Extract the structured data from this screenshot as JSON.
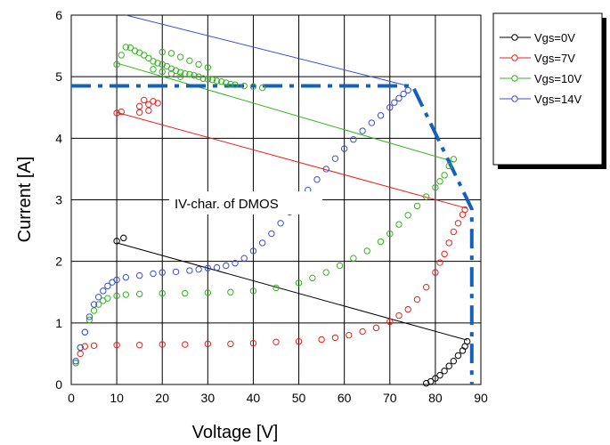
{
  "chart_data": {
    "type": "scatter",
    "title": "",
    "xlabel": "Voltage [V]",
    "ylabel": "Current [A]",
    "xlim": [
      0,
      90
    ],
    "ylim": [
      0,
      6
    ],
    "x_ticks": [
      0,
      10,
      20,
      30,
      40,
      50,
      60,
      70,
      80,
      90
    ],
    "y_ticks": [
      0,
      1,
      2,
      3,
      4,
      5,
      6
    ],
    "grid": true,
    "legend_position": "right-outside",
    "annotation": {
      "text": "IV-char. of DMOS",
      "x": 38,
      "y": 2.85
    },
    "series": [
      {
        "name": "Vgs=0V",
        "color": "#000000",
        "points": [
          [
            78,
            0.02
          ],
          [
            79,
            0.05
          ],
          [
            80,
            0.1
          ],
          [
            81,
            0.15
          ],
          [
            82,
            0.22
          ],
          [
            83,
            0.3
          ],
          [
            84,
            0.38
          ],
          [
            85,
            0.47
          ],
          [
            86,
            0.55
          ],
          [
            86.5,
            0.62
          ],
          [
            87,
            0.7
          ],
          [
            10,
            2.33
          ],
          [
            11.5,
            2.38
          ]
        ],
        "line": [
          [
            10,
            2.3
          ],
          [
            87,
            0.72
          ]
        ]
      },
      {
        "name": "Vgs=7V",
        "color": "#e8211c",
        "points": [
          [
            1,
            0.35
          ],
          [
            2,
            0.5
          ],
          [
            3,
            0.62
          ],
          [
            5,
            0.63
          ],
          [
            10,
            0.64
          ],
          [
            15,
            0.64
          ],
          [
            20,
            0.65
          ],
          [
            25,
            0.65
          ],
          [
            30,
            0.66
          ],
          [
            35,
            0.66
          ],
          [
            40,
            0.67
          ],
          [
            45,
            0.69
          ],
          [
            50,
            0.7
          ],
          [
            55,
            0.73
          ],
          [
            58,
            0.76
          ],
          [
            61,
            0.8
          ],
          [
            64,
            0.86
          ],
          [
            67,
            0.92
          ],
          [
            70,
            1.02
          ],
          [
            72,
            1.12
          ],
          [
            74,
            1.22
          ],
          [
            76,
            1.38
          ],
          [
            78,
            1.58
          ],
          [
            80,
            1.82
          ],
          [
            81,
            1.98
          ],
          [
            82,
            2.12
          ],
          [
            83,
            2.3
          ],
          [
            84,
            2.48
          ],
          [
            85,
            2.62
          ],
          [
            86,
            2.76
          ],
          [
            86.5,
            2.84
          ],
          [
            10,
            4.41
          ],
          [
            11,
            4.43
          ],
          [
            15,
            4.52
          ],
          [
            16,
            4.62
          ],
          [
            17,
            4.55
          ],
          [
            18,
            4.6
          ],
          [
            19,
            4.57
          ],
          [
            15,
            4.42
          ],
          [
            17,
            4.45
          ]
        ],
        "line": [
          [
            10,
            4.42
          ],
          [
            87,
            2.86
          ]
        ]
      },
      {
        "name": "Vgs=10V",
        "color": "#34b41c",
        "points": [
          [
            1,
            0.35
          ],
          [
            2,
            0.6
          ],
          [
            3,
            0.85
          ],
          [
            4,
            1.05
          ],
          [
            5,
            1.2
          ],
          [
            6,
            1.3
          ],
          [
            7,
            1.36
          ],
          [
            8,
            1.4
          ],
          [
            10,
            1.44
          ],
          [
            12,
            1.46
          ],
          [
            15,
            1.47
          ],
          [
            20,
            1.48
          ],
          [
            25,
            1.48
          ],
          [
            30,
            1.49
          ],
          [
            35,
            1.5
          ],
          [
            40,
            1.52
          ],
          [
            45,
            1.57
          ],
          [
            50,
            1.65
          ],
          [
            53,
            1.73
          ],
          [
            56,
            1.82
          ],
          [
            59,
            1.93
          ],
          [
            62,
            2.05
          ],
          [
            65,
            2.17
          ],
          [
            68,
            2.32
          ],
          [
            70,
            2.45
          ],
          [
            72,
            2.6
          ],
          [
            74,
            2.75
          ],
          [
            76,
            2.9
          ],
          [
            78,
            3.05
          ],
          [
            80,
            3.2
          ],
          [
            81,
            3.3
          ],
          [
            82,
            3.4
          ],
          [
            83,
            3.55
          ],
          [
            84,
            3.66
          ],
          [
            10,
            5.2
          ],
          [
            11,
            5.35
          ],
          [
            12,
            5.48
          ],
          [
            13,
            5.47
          ],
          [
            14,
            5.42
          ],
          [
            15,
            5.39
          ],
          [
            16,
            5.35
          ],
          [
            17,
            5.3
          ],
          [
            18,
            5.25
          ],
          [
            19,
            5.22
          ],
          [
            20,
            5.2
          ],
          [
            21,
            5.17
          ],
          [
            22,
            5.13
          ],
          [
            23,
            5.1
          ],
          [
            24,
            5.07
          ],
          [
            25,
            5.05
          ],
          [
            26,
            5.04
          ],
          [
            27,
            5.02
          ],
          [
            28,
            5.0
          ],
          [
            29,
            4.97
          ],
          [
            30,
            4.96
          ],
          [
            31,
            4.95
          ],
          [
            32,
            4.93
          ],
          [
            33,
            4.92
          ],
          [
            34,
            4.9
          ],
          [
            35,
            4.88
          ],
          [
            36,
            4.87
          ],
          [
            38,
            4.85
          ],
          [
            40,
            4.84
          ],
          [
            42,
            4.82
          ],
          [
            20,
            5.4
          ],
          [
            22,
            5.38
          ],
          [
            24,
            5.32
          ],
          [
            26,
            5.26
          ],
          [
            28,
            5.2
          ],
          [
            30,
            5.15
          ],
          [
            18,
            5.12
          ],
          [
            20,
            5.08
          ],
          [
            22,
            5.05
          ],
          [
            24,
            5.0
          ]
        ],
        "line": [
          [
            10,
            5.22
          ],
          [
            84,
            3.62
          ]
        ]
      },
      {
        "name": "Vgs=14V",
        "color": "#3a50c8",
        "points": [
          [
            1,
            0.38
          ],
          [
            2,
            0.6
          ],
          [
            3,
            0.85
          ],
          [
            4,
            1.1
          ],
          [
            5,
            1.3
          ],
          [
            6,
            1.42
          ],
          [
            7,
            1.52
          ],
          [
            8,
            1.6
          ],
          [
            9,
            1.66
          ],
          [
            10,
            1.7
          ],
          [
            12,
            1.74
          ],
          [
            15,
            1.77
          ],
          [
            18,
            1.8
          ],
          [
            20,
            1.82
          ],
          [
            23,
            1.83
          ],
          [
            26,
            1.85
          ],
          [
            28,
            1.87
          ],
          [
            30,
            1.89
          ],
          [
            32,
            1.9
          ],
          [
            34,
            1.93
          ],
          [
            36,
            1.97
          ],
          [
            38,
            2.05
          ],
          [
            40,
            2.17
          ],
          [
            42,
            2.3
          ],
          [
            44,
            2.45
          ],
          [
            46,
            2.62
          ],
          [
            48,
            2.8
          ],
          [
            50,
            2.98
          ],
          [
            52,
            3.16
          ],
          [
            54,
            3.33
          ],
          [
            56,
            3.5
          ],
          [
            58,
            3.67
          ],
          [
            60,
            3.83
          ],
          [
            62,
            3.98
          ],
          [
            64,
            4.12
          ],
          [
            66,
            4.25
          ],
          [
            68,
            4.37
          ],
          [
            70,
            4.5
          ],
          [
            71,
            4.58
          ],
          [
            72,
            4.65
          ],
          [
            73,
            4.72
          ],
          [
            74,
            4.78
          ]
        ],
        "line": [
          [
            12,
            6.0
          ],
          [
            74,
            4.85
          ]
        ]
      }
    ],
    "boundary": {
      "color": "#1560bd",
      "style": "dash-dot",
      "points": [
        [
          0,
          4.85
        ],
        [
          75,
          4.85
        ],
        [
          88,
          2.85
        ],
        [
          88,
          0
        ]
      ]
    }
  }
}
